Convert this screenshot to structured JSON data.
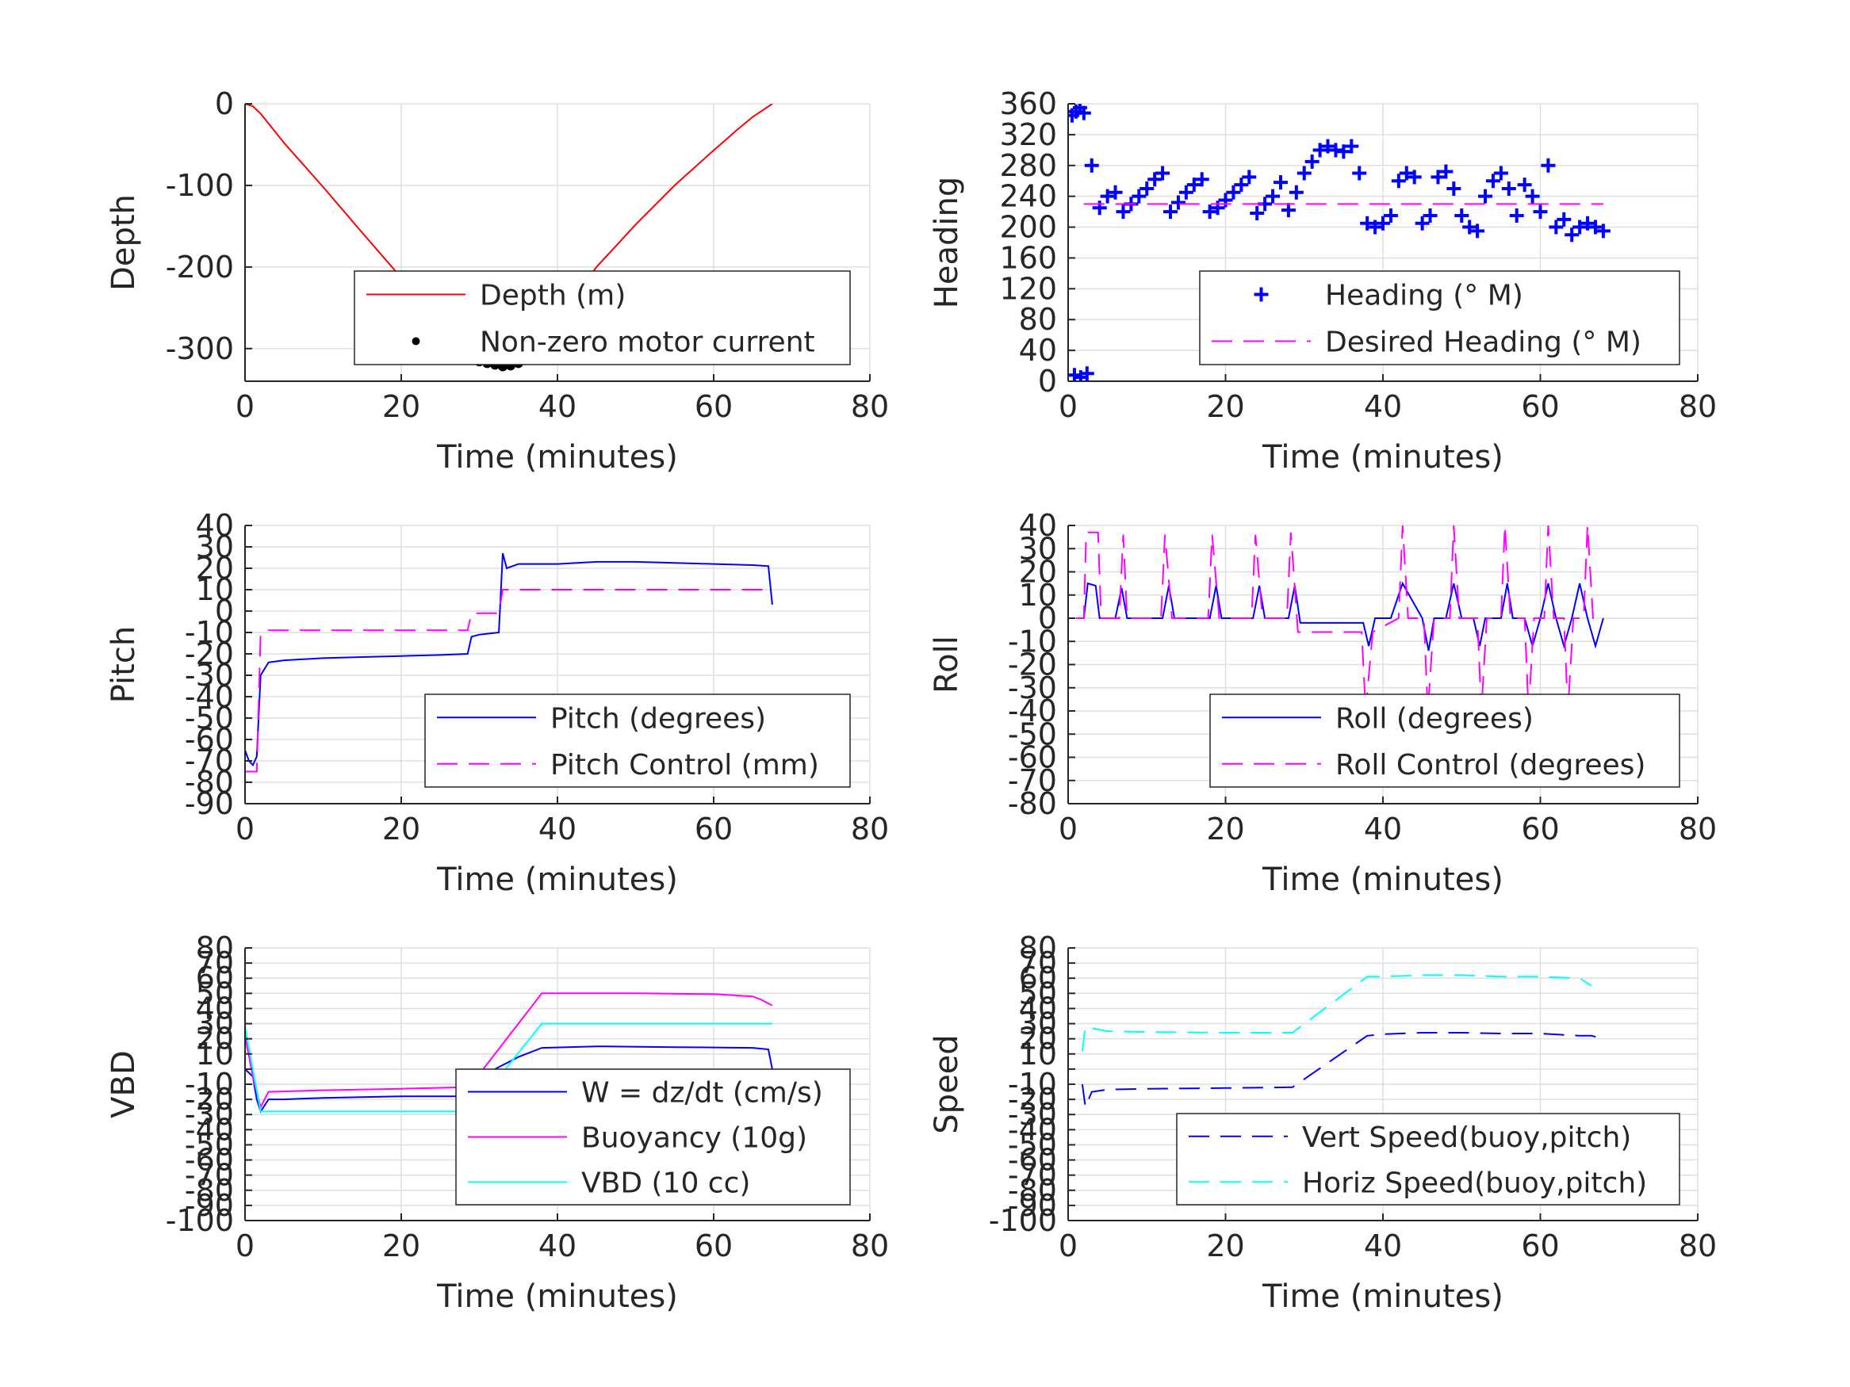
{
  "figure": {
    "background": "#ffffff"
  },
  "chart_data": [
    {
      "id": "depth",
      "type": "line",
      "xlabel": "Time (minutes)",
      "ylabel": "Depth",
      "xlim": [
        0,
        80
      ],
      "ylim": [
        -340,
        0
      ],
      "xticks": [
        0,
        20,
        40,
        60,
        80
      ],
      "yticks": [
        0,
        -100,
        -200,
        -300
      ],
      "grid": true,
      "legend": "center-right",
      "series": [
        {
          "name": "Depth (m)",
          "style": "solid",
          "marker": "none",
          "color": "#ff0000",
          "x": [
            0,
            1,
            2,
            5,
            10,
            15,
            20,
            25,
            29,
            33,
            37,
            40,
            45,
            50,
            55,
            60,
            63,
            65,
            67.5
          ],
          "y": [
            0,
            -3,
            -12,
            -48,
            -102,
            -158,
            -213,
            -268,
            -313,
            -322,
            -303,
            -262,
            -200,
            -148,
            -100,
            -57,
            -32,
            -16,
            0
          ]
        },
        {
          "name": "Non-zero motor current",
          "style": "none",
          "marker": "dot",
          "color": "#000000",
          "x": [
            29,
            30,
            31,
            32,
            33,
            34,
            35,
            36,
            37,
            38
          ],
          "y": [
            -313,
            -316,
            -318,
            -320,
            -322,
            -321,
            -318,
            -314,
            -308,
            -303
          ]
        }
      ]
    },
    {
      "id": "heading",
      "type": "scatter",
      "xlabel": "Time (minutes)",
      "ylabel": "Heading",
      "xlim": [
        0,
        80
      ],
      "ylim": [
        0,
        360
      ],
      "xticks": [
        0,
        20,
        40,
        60,
        80
      ],
      "yticks": [
        0,
        40,
        80,
        120,
        160,
        200,
        240,
        280,
        320,
        360
      ],
      "grid": true,
      "legend": "bottom-right",
      "series": [
        {
          "name": "Heading (° M)",
          "style": "none",
          "marker": "plus",
          "color": "#0000ff",
          "x": [
            0.5,
            1,
            1.5,
            2,
            0.8,
            1.6,
            2.4,
            3,
            4,
            5,
            6,
            7,
            8,
            9,
            10,
            11,
            12,
            13,
            14,
            15,
            16,
            17,
            18,
            19,
            20,
            21,
            22,
            23,
            24,
            25,
            26,
            27,
            28,
            29,
            30,
            31,
            32,
            33,
            34,
            35,
            36,
            37,
            38,
            39,
            40,
            41,
            42,
            43,
            44,
            45,
            46,
            47,
            48,
            49,
            50,
            51,
            52,
            53,
            54,
            55,
            56,
            57,
            58,
            59,
            60,
            61,
            62,
            63,
            64,
            65,
            66,
            67,
            68
          ],
          "y": [
            345,
            350,
            355,
            348,
            8,
            5,
            10,
            280,
            225,
            240,
            245,
            220,
            230,
            240,
            250,
            262,
            270,
            220,
            232,
            245,
            255,
            262,
            220,
            225,
            235,
            245,
            255,
            265,
            218,
            230,
            240,
            258,
            222,
            245,
            270,
            285,
            300,
            305,
            300,
            298,
            305,
            270,
            205,
            200,
            205,
            215,
            260,
            270,
            265,
            205,
            215,
            265,
            272,
            250,
            215,
            200,
            195,
            240,
            260,
            270,
            250,
            215,
            255,
            240,
            220,
            280,
            200,
            210,
            190,
            200,
            205,
            200,
            195
          ]
        },
        {
          "name": "Desired Heading (° M)",
          "style": "dashed",
          "marker": "none",
          "color": "#ff00ff",
          "x": [
            2,
            68
          ],
          "y": [
            230,
            230
          ]
        }
      ]
    },
    {
      "id": "pitch",
      "type": "line",
      "xlabel": "Time (minutes)",
      "ylabel": "Pitch",
      "xlim": [
        0,
        80
      ],
      "ylim": [
        -90,
        40
      ],
      "xticks": [
        0,
        20,
        40,
        60,
        80
      ],
      "yticks": [
        40,
        30,
        20,
        10,
        0,
        -10,
        -20,
        -30,
        -40,
        -50,
        -60,
        -70,
        -80,
        -90
      ],
      "grid": true,
      "legend": "bottom-right",
      "series": [
        {
          "name": "Pitch (degrees)",
          "style": "solid",
          "marker": "none",
          "color": "#0000ff",
          "x": [
            0,
            0.5,
            1,
            1.5,
            2,
            3,
            5,
            10,
            15,
            20,
            25,
            28.5,
            29,
            30,
            32.5,
            33,
            33.5,
            35,
            40,
            45,
            50,
            55,
            60,
            65,
            67,
            67.5
          ],
          "y": [
            -65,
            -70,
            -72,
            -68,
            -30,
            -24,
            -23,
            -22,
            -21.5,
            -21,
            -20.5,
            -20,
            -12,
            -11,
            -10,
            27,
            20,
            22,
            22,
            23,
            23,
            22.5,
            22,
            21.5,
            21,
            3
          ]
        },
        {
          "name": "Pitch Control (mm)",
          "style": "dashed",
          "marker": "none",
          "color": "#ff00ff",
          "x": [
            0,
            1.5,
            2,
            3,
            28.5,
            29,
            32.5,
            33,
            67.5
          ],
          "y": [
            -75,
            -75,
            -10,
            -9,
            -9,
            -1,
            -1,
            10,
            10
          ]
        }
      ]
    },
    {
      "id": "roll",
      "type": "line",
      "xlabel": "Time (minutes)",
      "ylabel": "Roll",
      "xlim": [
        0,
        80
      ],
      "ylim": [
        -80,
        40
      ],
      "xticks": [
        0,
        20,
        40,
        60,
        80
      ],
      "yticks": [
        40,
        30,
        20,
        10,
        0,
        -10,
        -20,
        -30,
        -40,
        -50,
        -60,
        -70,
        -80
      ],
      "grid": true,
      "legend": "bottom-right",
      "series": [
        {
          "name": "Roll (degrees)",
          "style": "solid",
          "marker": "none",
          "color": "#0000ff",
          "x": [
            1,
            2,
            2.5,
            3.5,
            4,
            6,
            6.8,
            7.5,
            12,
            12.8,
            13.5,
            18,
            18.8,
            19.5,
            23.5,
            24.3,
            25,
            28,
            28.8,
            29.5,
            37.5,
            38.2,
            39,
            41,
            42.5,
            45,
            45.8,
            46.5,
            48,
            49,
            50,
            51.5,
            52.3,
            53,
            55,
            55.8,
            56.5,
            58,
            59,
            60,
            61,
            62,
            63,
            64,
            65,
            66,
            67,
            68
          ],
          "y": [
            0,
            0,
            15,
            14,
            0,
            0,
            13,
            0,
            0,
            14,
            0,
            0,
            14,
            0,
            0,
            14,
            0,
            0,
            14,
            -2,
            -2,
            -12,
            0,
            0,
            15,
            0,
            -14,
            0,
            0,
            15,
            0,
            0,
            -12,
            0,
            0,
            15,
            0,
            0,
            -12,
            0,
            15,
            0,
            -12,
            0,
            15,
            0,
            -12,
            0
          ]
        },
        {
          "name": "Roll Control (degrees)",
          "style": "dashed",
          "marker": "none",
          "color": "#ff00ff",
          "x": [
            1,
            2,
            2.3,
            3.8,
            4.2,
            6.5,
            7,
            7.5,
            11.8,
            12.3,
            13.2,
            17.8,
            18.3,
            19.2,
            23.3,
            23.8,
            24.7,
            27.8,
            28.3,
            29.2,
            34,
            37.3,
            37.8,
            38.7,
            42,
            42.5,
            43.2,
            45.2,
            45.7,
            46.5,
            48.5,
            49,
            49.7,
            52,
            52.5,
            53.2,
            55,
            55.5,
            56.2,
            58,
            58.5,
            59.2,
            60.5,
            61,
            61.7,
            63,
            63.5,
            64.2,
            65.5,
            66,
            66.7,
            67.5
          ],
          "y": [
            0,
            0,
            37,
            37,
            0,
            0,
            36,
            0,
            0,
            36,
            0,
            0,
            36,
            0,
            0,
            36,
            0,
            0,
            37,
            -6,
            -6,
            -6,
            -40,
            -6,
            0,
            40,
            0,
            0,
            -40,
            0,
            0,
            40,
            0,
            0,
            -40,
            0,
            0,
            40,
            0,
            0,
            -40,
            0,
            0,
            40,
            0,
            0,
            -40,
            0,
            0,
            40,
            0,
            0
          ]
        }
      ]
    },
    {
      "id": "vbd",
      "type": "line",
      "xlabel": "Time (minutes)",
      "ylabel": "VBD",
      "xlim": [
        0,
        80
      ],
      "ylim": [
        -100,
        80
      ],
      "xticks": [
        0,
        20,
        40,
        60,
        80
      ],
      "yticks": [
        80,
        70,
        60,
        50,
        40,
        30,
        20,
        10,
        0,
        -10,
        -20,
        -30,
        -40,
        -50,
        -60,
        -70,
        -80,
        -90,
        -100
      ],
      "yticklabels": [
        "80",
        "70",
        "60",
        "50",
        "40",
        "30",
        "20",
        "10",
        "",
        "-10",
        "-20",
        "-30",
        "-40",
        "-50",
        "-60",
        "-70",
        "-80",
        "-90",
        "-100"
      ],
      "grid": true,
      "legend": "bottom-right",
      "series": [
        {
          "name": "W = dz/dt (cm/s)",
          "style": "solid",
          "marker": "none",
          "color": "#0000ff",
          "x": [
            0,
            1,
            1.5,
            2,
            3,
            5,
            10,
            20,
            28,
            29,
            32,
            35,
            38,
            45,
            55,
            65,
            67,
            67.5
          ],
          "y": [
            0,
            -5,
            -20,
            -28,
            -20,
            -20,
            -19,
            -18,
            -18,
            -15,
            0,
            8,
            14,
            15,
            14.5,
            14,
            13,
            0
          ]
        },
        {
          "name": "Buoyancy (10g)",
          "style": "solid",
          "marker": "none",
          "color": "#ff00ff",
          "x": [
            0,
            1,
            2,
            3,
            10,
            20,
            28,
            29,
            38,
            50,
            60,
            65,
            66,
            67.5
          ],
          "y": [
            22,
            -5,
            -25,
            -15,
            -14,
            -13,
            -12,
            -10,
            50,
            50,
            49.5,
            48,
            46,
            42
          ]
        },
        {
          "name": "VBD (10 cc)",
          "style": "solid",
          "marker": "none",
          "color": "#00ffff",
          "x": [
            0,
            2,
            3,
            20,
            29,
            38,
            40,
            50,
            60,
            67.5
          ],
          "y": [
            28,
            -28,
            -28,
            -28,
            -28,
            30,
            30,
            30,
            30,
            30
          ]
        }
      ]
    },
    {
      "id": "speed",
      "type": "line",
      "xlabel": "Time (minutes)",
      "ylabel": "Speed",
      "xlim": [
        0,
        80
      ],
      "ylim": [
        -100,
        80
      ],
      "xticks": [
        0,
        20,
        40,
        60,
        80
      ],
      "yticks": [
        80,
        70,
        60,
        50,
        40,
        30,
        20,
        10,
        0,
        -10,
        -20,
        -30,
        -40,
        -50,
        -60,
        -70,
        -80,
        -90,
        -100
      ],
      "yticklabels": [
        "80",
        "70",
        "60",
        "50",
        "40",
        "30",
        "20",
        "10",
        "",
        "-10",
        "-20",
        "-30",
        "-40",
        "-50",
        "-60",
        "-70",
        "-80",
        "-90",
        "-100"
      ],
      "grid": true,
      "legend": "bottom-right",
      "series": [
        {
          "name": "Vert Speed(buoy,pitch)",
          "style": "dashed",
          "marker": "none",
          "color": "#0000ff",
          "x": [
            1.8,
            2.2,
            3,
            5,
            10,
            20,
            28.5,
            38,
            40,
            45,
            50,
            55,
            60,
            65,
            66.5,
            68
          ],
          "y": [
            -10,
            -25,
            -15,
            -13.5,
            -13,
            -12.5,
            -12,
            22,
            23,
            24,
            24,
            23.5,
            23.5,
            22,
            22,
            20
          ]
        },
        {
          "name": "Horiz Speed(buoy,pitch)",
          "style": "dashed",
          "marker": "none",
          "color": "#00ffff",
          "x": [
            1.8,
            2.2,
            3,
            5,
            10,
            20,
            28.5,
            38,
            40,
            45,
            50,
            55,
            60,
            65,
            66.5
          ],
          "y": [
            12,
            28,
            27,
            25,
            24.5,
            24,
            24,
            61,
            61,
            62,
            62,
            61,
            61,
            60,
            55
          ]
        }
      ]
    }
  ]
}
